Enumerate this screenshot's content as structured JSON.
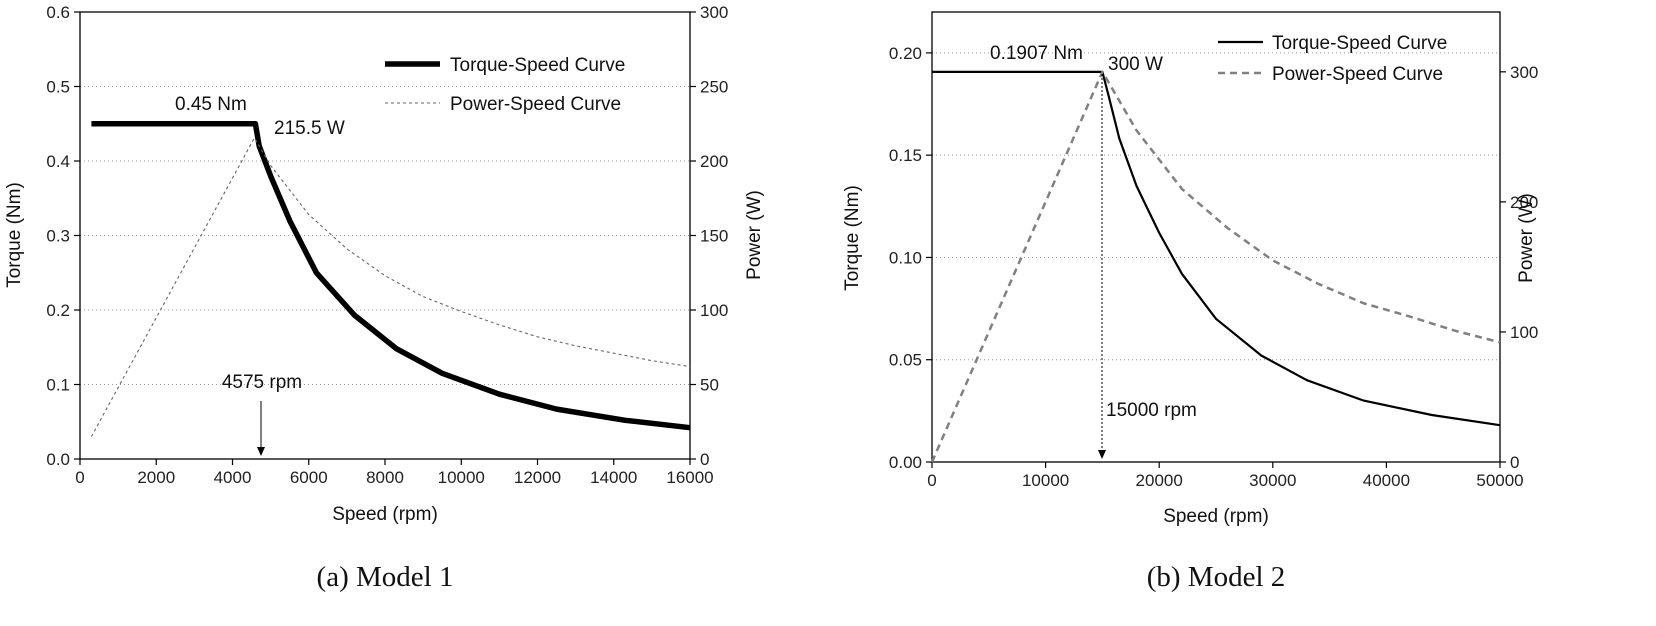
{
  "chart_data": [
    {
      "type": "line",
      "caption": "(a) Model 1",
      "xlabel": "Speed (rpm)",
      "ylabel": "Torque (Nm)",
      "y2label": "Power (W)",
      "xlim": [
        0,
        16000
      ],
      "ylim": [
        0,
        0.6
      ],
      "y2lim": [
        0,
        300
      ],
      "xticks": [
        "0",
        "2000",
        "4000",
        "6000",
        "8000",
        "10000",
        "12000",
        "14000",
        "16000"
      ],
      "yticks": [
        "0.0",
        "0.1",
        "0.2",
        "0.3",
        "0.4",
        "0.5",
        "0.6"
      ],
      "y2ticks": [
        "0",
        "50",
        "100",
        "150",
        "200",
        "250",
        "300"
      ],
      "grid": true,
      "legend_position": "top-right",
      "series": [
        {
          "name": "Torque-Speed Curve",
          "axis": "left",
          "style": "thick-solid",
          "color": "#000000",
          "x": [
            300,
            4600,
            4700,
            5000,
            5500,
            6200,
            7200,
            8300,
            9500,
            11000,
            12500,
            14300,
            16000
          ],
          "y": [
            0.45,
            0.45,
            0.42,
            0.38,
            0.32,
            0.25,
            0.193,
            0.148,
            0.115,
            0.087,
            0.067,
            0.052,
            0.042
          ]
        },
        {
          "name": "Power-Speed Curve",
          "axis": "right",
          "style": "thin-dotted",
          "color": "#666666",
          "x": [
            300,
            4575,
            5000,
            6000,
            7000,
            8000,
            9000,
            10000,
            11000,
            12000,
            13000,
            14000,
            15000,
            16000
          ],
          "y": [
            15,
            215.5,
            197,
            164,
            141,
            123,
            109,
            99,
            90,
            82,
            76,
            71,
            66,
            62
          ]
        }
      ],
      "annotations": {
        "torque_label": "0.45 Nm",
        "power_label": "215.5 W",
        "speed_label": "4575 rpm"
      }
    },
    {
      "type": "line",
      "caption": "(b) Model 2",
      "xlabel": "Speed (rpm)",
      "ylabel": "Torque (Nm)",
      "y2label": "Power (W)",
      "xlim": [
        0,
        50000
      ],
      "ylim": [
        0,
        0.22
      ],
      "y2lim": [
        0,
        346
      ],
      "xticks": [
        "0",
        "10000",
        "20000",
        "30000",
        "40000",
        "50000"
      ],
      "yticks": [
        "0.00",
        "0.05",
        "0.10",
        "0.15",
        "0.20"
      ],
      "y2ticks": [
        "0",
        "100",
        "200",
        "300"
      ],
      "grid": true,
      "legend_position": "top-right",
      "series": [
        {
          "name": "Torque-Speed Curve",
          "axis": "left",
          "style": "solid",
          "color": "#000000",
          "x": [
            0,
            15000,
            15500,
            16500,
            18000,
            20000,
            22000,
            25000,
            29000,
            33000,
            38000,
            44000,
            50000
          ],
          "y": [
            0.1907,
            0.1907,
            0.18,
            0.158,
            0.135,
            0.112,
            0.092,
            0.07,
            0.052,
            0.04,
            0.03,
            0.023,
            0.018
          ]
        },
        {
          "name": "Power-Speed Curve",
          "axis": "right",
          "style": "dashed",
          "color": "#808080",
          "x": [
            0,
            15000,
            18000,
            22000,
            26000,
            30000,
            34000,
            38000,
            42000,
            46000,
            50000
          ],
          "y": [
            0,
            300,
            255,
            210,
            180,
            155,
            137,
            122,
            112,
            101,
            92
          ]
        }
      ],
      "annotations": {
        "torque_label": "0.1907 Nm",
        "power_label": "300 W",
        "speed_label": "15000 rpm"
      }
    }
  ]
}
